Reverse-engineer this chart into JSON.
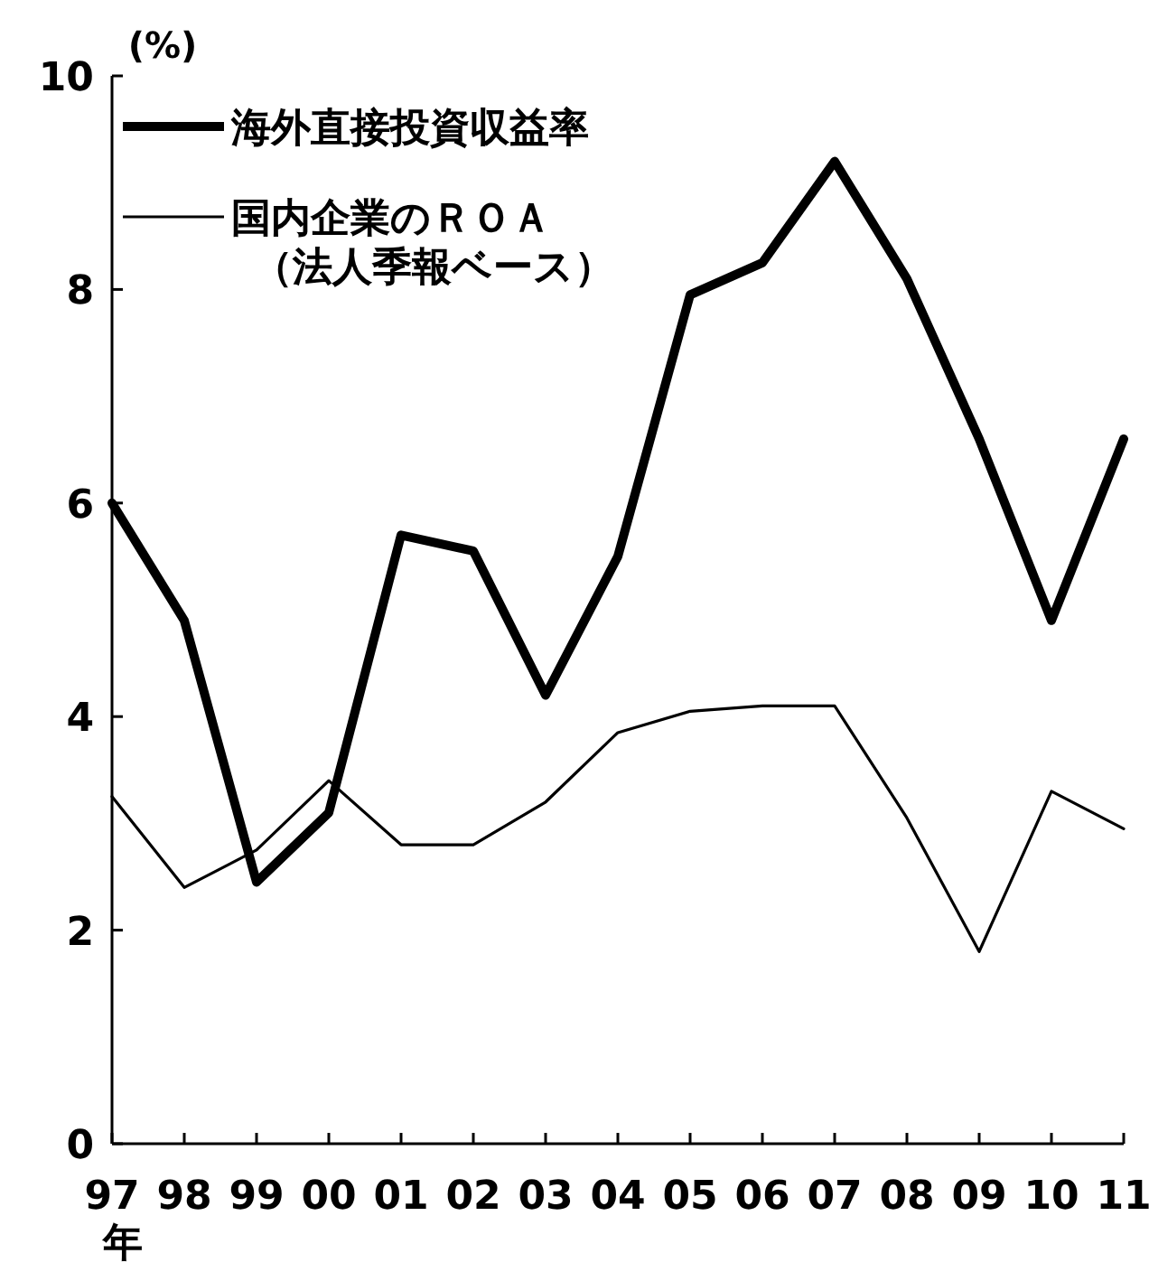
{
  "chart_data": {
    "type": "line",
    "ylabel": "(%)",
    "categories": [
      "97",
      "98",
      "99",
      "00",
      "01",
      "02",
      "03",
      "04",
      "05",
      "06",
      "07",
      "08",
      "09",
      "10",
      "11"
    ],
    "series": [
      {
        "name": "海外直接投資収益率",
        "color": "#000000",
        "values": [
          6.0,
          4.9,
          2.45,
          3.1,
          5.7,
          5.55,
          4.2,
          5.5,
          7.95,
          8.25,
          9.2,
          8.1,
          6.6,
          4.9,
          6.6
        ]
      },
      {
        "name": "国内企業のＲＯＡ（法人季報ベース）",
        "color": "#000000",
        "values": [
          3.25,
          2.4,
          2.75,
          3.4,
          2.8,
          2.8,
          3.2,
          3.85,
          4.05,
          4.1,
          4.1,
          3.05,
          1.8,
          3.3,
          2.95
        ]
      }
    ],
    "ylim": [
      0,
      10
    ],
    "yticks": [
      0,
      2,
      4,
      6,
      8,
      10
    ],
    "legend": "top left",
    "marker": "none",
    "line_style": "solid",
    "annotations": [
      "年"
    ]
  }
}
